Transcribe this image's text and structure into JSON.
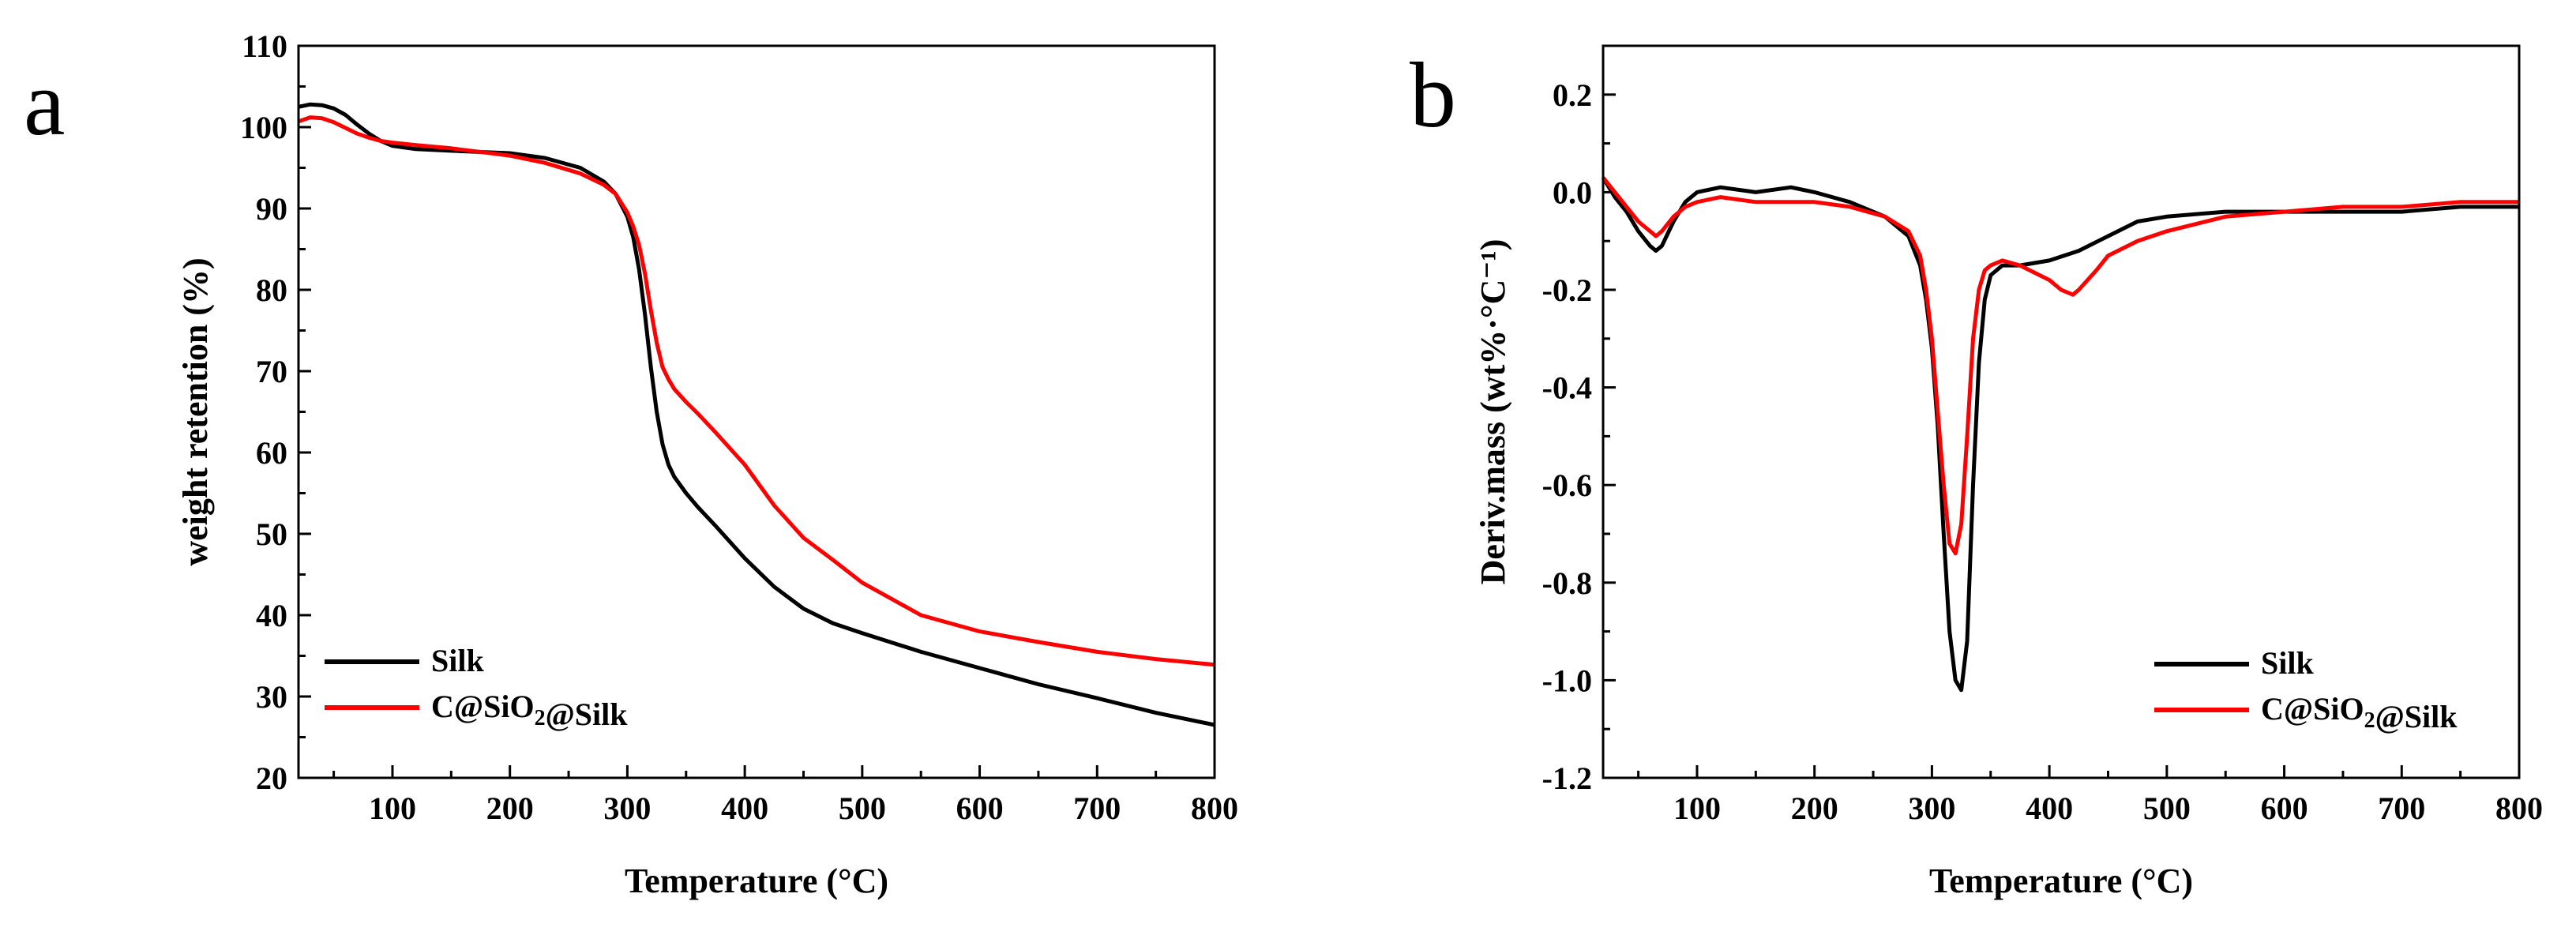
{
  "chart_data": [
    {
      "panel": "a",
      "type": "line",
      "title": "",
      "xlabel": "Temperature (°C)",
      "ylabel": "weight retention (%)",
      "xlim": [
        20,
        800
      ],
      "ylim": [
        20,
        110
      ],
      "xticks": [
        100,
        200,
        300,
        400,
        500,
        600,
        700,
        800
      ],
      "yticks": [
        20,
        30,
        40,
        50,
        60,
        70,
        80,
        90,
        100,
        110
      ],
      "legend_position": "bottom-left",
      "series": [
        {
          "name": "Silk",
          "color": "#000000",
          "x": [
            20,
            30,
            40,
            50,
            60,
            70,
            80,
            90,
            100,
            120,
            150,
            200,
            230,
            260,
            280,
            290,
            300,
            305,
            310,
            315,
            320,
            325,
            330,
            335,
            340,
            350,
            360,
            375,
            400,
            425,
            450,
            475,
            500,
            550,
            600,
            650,
            700,
            750,
            800
          ],
          "y": [
            102.5,
            102.8,
            102.7,
            102.3,
            101.5,
            100.3,
            99.2,
            98.3,
            97.7,
            97.3,
            97.1,
            96.8,
            96.2,
            95.0,
            93.3,
            91.8,
            89.0,
            86.5,
            82.5,
            77.0,
            70.5,
            65.0,
            61.0,
            58.5,
            57.0,
            55.0,
            53.3,
            51.0,
            47.0,
            43.5,
            40.8,
            39.0,
            37.8,
            35.5,
            33.5,
            31.5,
            29.8,
            28.0,
            26.5
          ]
        },
        {
          "name": "C@SiO2@Silk",
          "color": "#ff0000",
          "x": [
            20,
            30,
            40,
            50,
            60,
            70,
            80,
            90,
            100,
            120,
            150,
            200,
            230,
            260,
            280,
            290,
            300,
            305,
            310,
            315,
            320,
            325,
            330,
            335,
            340,
            350,
            360,
            375,
            400,
            425,
            450,
            475,
            500,
            550,
            600,
            650,
            700,
            750,
            800
          ],
          "y": [
            100.7,
            101.2,
            101.1,
            100.6,
            99.9,
            99.2,
            98.7,
            98.3,
            98.1,
            97.8,
            97.4,
            96.5,
            95.6,
            94.3,
            92.9,
            91.8,
            89.5,
            87.8,
            85.5,
            82.0,
            77.5,
            73.5,
            70.5,
            69.0,
            67.8,
            66.2,
            64.8,
            62.5,
            58.5,
            53.5,
            49.5,
            46.8,
            44.0,
            40.0,
            38.0,
            36.7,
            35.5,
            34.6,
            33.9
          ]
        }
      ]
    },
    {
      "panel": "b",
      "type": "line",
      "title": "",
      "xlabel": "Temperature (°C)",
      "ylabel": "Deriv.mass (wt%·°C⁻¹)",
      "xlim": [
        20,
        800
      ],
      "ylim": [
        -1.2,
        0.3
      ],
      "xticks": [
        100,
        200,
        300,
        400,
        500,
        600,
        700,
        800
      ],
      "yticks": [
        -1.2,
        -1.0,
        -0.8,
        -0.6,
        -0.4,
        -0.2,
        0.0,
        0.2
      ],
      "ytick_labels": [
        "-1.2",
        "-1.0",
        "-0.8",
        "-0.6",
        "-0.4",
        "-0.2",
        "0.0",
        "0.2"
      ],
      "legend_position": "bottom-right",
      "series": [
        {
          "name": "Silk",
          "color": "#000000",
          "x": [
            20,
            30,
            40,
            50,
            60,
            65,
            70,
            80,
            90,
            100,
            120,
            150,
            180,
            200,
            230,
            260,
            280,
            290,
            295,
            300,
            305,
            310,
            315,
            320,
            325,
            330,
            335,
            340,
            345,
            350,
            360,
            375,
            400,
            425,
            450,
            475,
            500,
            550,
            600,
            650,
            700,
            750,
            800
          ],
          "y": [
            0.03,
            -0.01,
            -0.04,
            -0.08,
            -0.11,
            -0.12,
            -0.11,
            -0.06,
            -0.02,
            0.0,
            0.01,
            0.0,
            0.01,
            0.0,
            -0.02,
            -0.05,
            -0.09,
            -0.15,
            -0.22,
            -0.32,
            -0.48,
            -0.7,
            -0.9,
            -1.0,
            -1.02,
            -0.92,
            -0.6,
            -0.35,
            -0.22,
            -0.17,
            -0.15,
            -0.15,
            -0.14,
            -0.12,
            -0.09,
            -0.06,
            -0.05,
            -0.04,
            -0.04,
            -0.04,
            -0.04,
            -0.03,
            -0.03
          ]
        },
        {
          "name": "C@SiO2@Silk",
          "color": "#ff0000",
          "x": [
            20,
            30,
            40,
            50,
            60,
            65,
            70,
            80,
            90,
            100,
            120,
            150,
            180,
            200,
            230,
            260,
            280,
            290,
            295,
            300,
            305,
            310,
            315,
            320,
            325,
            330,
            335,
            340,
            345,
            350,
            360,
            375,
            400,
            410,
            420,
            425,
            440,
            450,
            475,
            500,
            550,
            600,
            650,
            700,
            750,
            800
          ],
          "y": [
            0.03,
            0.0,
            -0.03,
            -0.06,
            -0.08,
            -0.09,
            -0.08,
            -0.05,
            -0.03,
            -0.02,
            -0.01,
            -0.02,
            -0.02,
            -0.02,
            -0.03,
            -0.05,
            -0.08,
            -0.13,
            -0.2,
            -0.3,
            -0.45,
            -0.6,
            -0.72,
            -0.74,
            -0.68,
            -0.5,
            -0.3,
            -0.2,
            -0.16,
            -0.15,
            -0.14,
            -0.15,
            -0.18,
            -0.2,
            -0.21,
            -0.2,
            -0.16,
            -0.13,
            -0.1,
            -0.08,
            -0.05,
            -0.04,
            -0.03,
            -0.03,
            -0.02,
            -0.02
          ]
        }
      ]
    }
  ]
}
